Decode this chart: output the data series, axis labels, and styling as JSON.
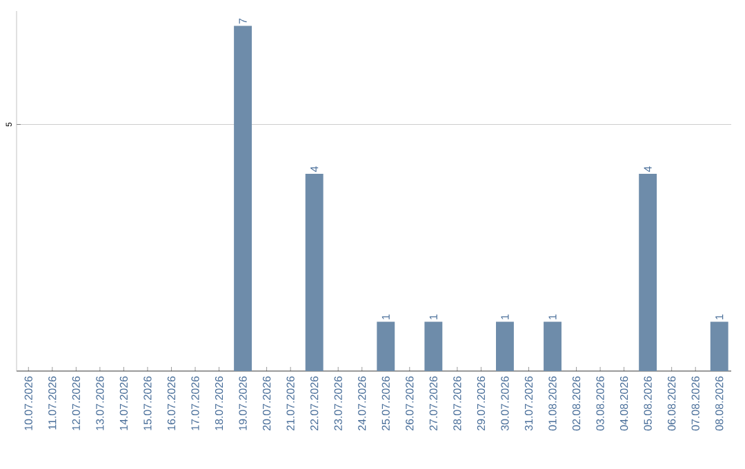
{
  "chart_data": {
    "type": "bar",
    "categories": [
      "10.07.2026",
      "11.07.2026",
      "12.07.2026",
      "13.07.2026",
      "14.07.2026",
      "15.07.2026",
      "16.07.2026",
      "17.07.2026",
      "18.07.2026",
      "19.07.2026",
      "20.07.2026",
      "21.07.2026",
      "22.07.2026",
      "23.07.2026",
      "24.07.2026",
      "25.07.2026",
      "26.07.2026",
      "27.07.2026",
      "28.07.2026",
      "29.07.2026",
      "30.07.2026",
      "31.07.2026",
      "01.08.2026",
      "02.08.2026",
      "03.08.2026",
      "04.08.2026",
      "05.08.2026",
      "06.08.2026",
      "07.08.2026",
      "08.08.2026"
    ],
    "values": [
      0,
      0,
      0,
      0,
      0,
      0,
      0,
      0,
      0,
      7,
      0,
      0,
      4,
      0,
      0,
      1,
      0,
      1,
      0,
      0,
      1,
      0,
      1,
      0,
      0,
      0,
      4,
      0,
      0,
      1
    ],
    "value_labels": [
      null,
      null,
      null,
      null,
      null,
      null,
      null,
      null,
      null,
      "7",
      null,
      null,
      "4",
      null,
      null,
      "1",
      null,
      "1",
      null,
      null,
      "1",
      null,
      "1",
      null,
      null,
      null,
      "4",
      null,
      null,
      "1"
    ],
    "color": "#6e8caa",
    "ylim": [
      0,
      7.3
    ],
    "yticks": [
      5
    ],
    "grid": "y"
  }
}
